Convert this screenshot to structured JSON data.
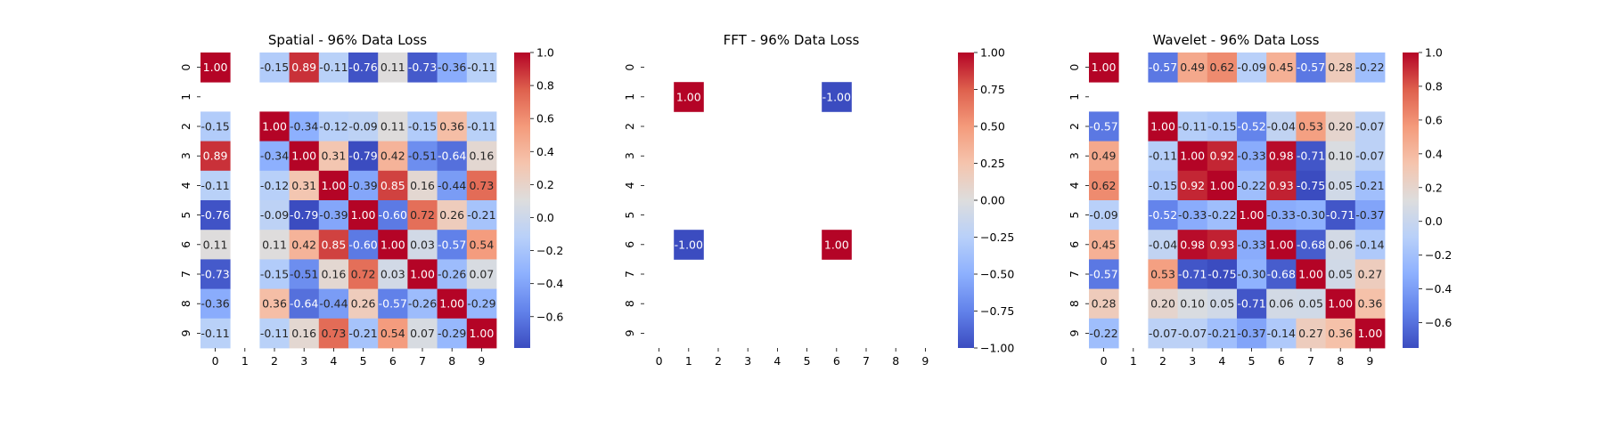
{
  "chart_data": [
    {
      "type": "heatmap",
      "title": "Spatial - 96% Data Loss",
      "xlabel": "",
      "ylabel": "",
      "x_labels": [
        "0",
        "1",
        "2",
        "3",
        "4",
        "5",
        "6",
        "7",
        "8",
        "9"
      ],
      "y_labels": [
        "0",
        "1",
        "2",
        "3",
        "4",
        "5",
        "6",
        "7",
        "8",
        "9"
      ],
      "colormap": "coolwarm",
      "vmin": -0.79,
      "vmax": 1.0,
      "colorbar_ticks": [
        1.0,
        0.8,
        0.6,
        0.4,
        0.2,
        0.0,
        -0.2,
        -0.4,
        -0.6
      ],
      "colorbar_labels": [
        "1.0",
        "0.8",
        "0.6",
        "0.4",
        "0.2",
        "0.0",
        "−0.2",
        "−0.4",
        "−0.6"
      ],
      "values": [
        [
          1.0,
          null,
          -0.15,
          0.89,
          -0.11,
          -0.76,
          0.11,
          -0.73,
          -0.36,
          -0.11
        ],
        [
          null,
          null,
          null,
          null,
          null,
          null,
          null,
          null,
          null,
          null
        ],
        [
          -0.15,
          null,
          1.0,
          -0.34,
          -0.12,
          -0.09,
          0.11,
          -0.15,
          0.36,
          -0.11
        ],
        [
          0.89,
          null,
          -0.34,
          1.0,
          0.31,
          -0.79,
          0.42,
          -0.51,
          -0.64,
          0.16
        ],
        [
          -0.11,
          null,
          -0.12,
          0.31,
          1.0,
          -0.39,
          0.85,
          0.16,
          -0.44,
          0.73
        ],
        [
          -0.76,
          null,
          -0.09,
          -0.79,
          -0.39,
          1.0,
          -0.6,
          0.72,
          0.26,
          -0.21
        ],
        [
          0.11,
          null,
          0.11,
          0.42,
          0.85,
          -0.6,
          1.0,
          0.03,
          -0.57,
          0.54
        ],
        [
          -0.73,
          null,
          -0.15,
          -0.51,
          0.16,
          0.72,
          0.03,
          1.0,
          -0.26,
          0.07
        ],
        [
          -0.36,
          null,
          0.36,
          -0.64,
          -0.44,
          0.26,
          -0.57,
          -0.26,
          1.0,
          -0.29
        ],
        [
          -0.11,
          null,
          -0.11,
          0.16,
          0.73,
          -0.21,
          0.54,
          0.07,
          -0.29,
          1.0
        ]
      ]
    },
    {
      "type": "heatmap",
      "title": "FFT - 96% Data Loss",
      "xlabel": "",
      "ylabel": "",
      "x_labels": [
        "0",
        "1",
        "2",
        "3",
        "4",
        "5",
        "6",
        "7",
        "8",
        "9"
      ],
      "y_labels": [
        "0",
        "1",
        "2",
        "3",
        "4",
        "5",
        "6",
        "7",
        "8",
        "9"
      ],
      "colormap": "coolwarm",
      "vmin": -1.0,
      "vmax": 1.0,
      "colorbar_ticks": [
        1.0,
        0.75,
        0.5,
        0.25,
        0.0,
        -0.25,
        -0.5,
        -0.75,
        -1.0
      ],
      "colorbar_labels": [
        "1.00",
        "0.75",
        "0.50",
        "0.25",
        "0.00",
        "−0.25",
        "−0.50",
        "−0.75",
        "−1.00"
      ],
      "values": [
        [
          null,
          null,
          null,
          null,
          null,
          null,
          null,
          null,
          null,
          null
        ],
        [
          null,
          1.0,
          null,
          null,
          null,
          null,
          -1.0,
          null,
          null,
          null
        ],
        [
          null,
          null,
          null,
          null,
          null,
          null,
          null,
          null,
          null,
          null
        ],
        [
          null,
          null,
          null,
          null,
          null,
          null,
          null,
          null,
          null,
          null
        ],
        [
          null,
          null,
          null,
          null,
          null,
          null,
          null,
          null,
          null,
          null
        ],
        [
          null,
          null,
          null,
          null,
          null,
          null,
          null,
          null,
          null,
          null
        ],
        [
          null,
          -1.0,
          null,
          null,
          null,
          null,
          1.0,
          null,
          null,
          null
        ],
        [
          null,
          null,
          null,
          null,
          null,
          null,
          null,
          null,
          null,
          null
        ],
        [
          null,
          null,
          null,
          null,
          null,
          null,
          null,
          null,
          null,
          null
        ],
        [
          null,
          null,
          null,
          null,
          null,
          null,
          null,
          null,
          null,
          null
        ]
      ]
    },
    {
      "type": "heatmap",
      "title": "Wavelet - 96% Data Loss",
      "xlabel": "",
      "ylabel": "",
      "x_labels": [
        "0",
        "1",
        "2",
        "3",
        "4",
        "5",
        "6",
        "7",
        "8",
        "9"
      ],
      "y_labels": [
        "0",
        "1",
        "2",
        "3",
        "4",
        "5",
        "6",
        "7",
        "8",
        "9"
      ],
      "colormap": "coolwarm",
      "vmin": -0.75,
      "vmax": 1.0,
      "colorbar_ticks": [
        1.0,
        0.8,
        0.6,
        0.4,
        0.2,
        0.0,
        -0.2,
        -0.4,
        -0.6
      ],
      "colorbar_labels": [
        "1.0",
        "0.8",
        "0.6",
        "0.4",
        "0.2",
        "0.0",
        "−0.2",
        "−0.4",
        "−0.6"
      ],
      "values": [
        [
          1.0,
          null,
          -0.57,
          0.49,
          0.62,
          -0.09,
          0.45,
          -0.57,
          0.28,
          -0.22
        ],
        [
          null,
          null,
          null,
          null,
          null,
          null,
          null,
          null,
          null,
          null
        ],
        [
          -0.57,
          null,
          1.0,
          -0.11,
          -0.15,
          -0.52,
          -0.04,
          0.53,
          0.2,
          -0.07
        ],
        [
          0.49,
          null,
          -0.11,
          1.0,
          0.92,
          -0.33,
          0.98,
          -0.71,
          0.1,
          -0.07
        ],
        [
          0.62,
          null,
          -0.15,
          0.92,
          1.0,
          -0.22,
          0.93,
          -0.75,
          0.05,
          -0.21
        ],
        [
          -0.09,
          null,
          -0.52,
          -0.33,
          -0.22,
          1.0,
          -0.33,
          -0.3,
          -0.71,
          -0.37
        ],
        [
          0.45,
          null,
          -0.04,
          0.98,
          0.93,
          -0.33,
          1.0,
          -0.68,
          0.06,
          -0.14
        ],
        [
          -0.57,
          null,
          0.53,
          -0.71,
          -0.75,
          -0.3,
          -0.68,
          1.0,
          0.05,
          0.27
        ],
        [
          0.28,
          null,
          0.2,
          0.1,
          0.05,
          -0.71,
          0.06,
          0.05,
          1.0,
          0.36
        ],
        [
          -0.22,
          null,
          -0.07,
          -0.07,
          -0.21,
          -0.37,
          -0.14,
          0.27,
          0.36,
          1.0
        ]
      ]
    }
  ]
}
